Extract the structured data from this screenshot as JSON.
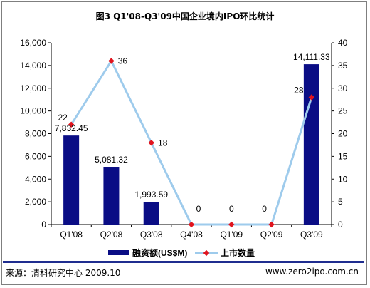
{
  "chart_data": {
    "type": "bar",
    "title": "图3  Q1'08-Q3'09中国企业境内IPO环比统计",
    "categories": [
      "Q1'08",
      "Q2'08",
      "Q3'08",
      "Q4'08",
      "Q1'09",
      "Q2'09",
      "Q3'09"
    ],
    "series": [
      {
        "name": "融资额(US$M)",
        "type": "bar",
        "axis": "left",
        "color": "#0a0d85",
        "values": [
          7832.45,
          5081.32,
          1993.59,
          0,
          0,
          0,
          14111.33
        ],
        "labels": [
          "7,832.45",
          "5,081.32",
          "1,993.59",
          "",
          "",
          "",
          "14,111.33"
        ]
      },
      {
        "name": "上市数量",
        "type": "line",
        "axis": "right",
        "color": "#9ecbec",
        "marker_color": "#e0141e",
        "values": [
          22,
          36,
          18,
          0,
          0,
          0,
          28
        ],
        "labels": [
          "22",
          "36",
          "18",
          "0",
          "0",
          "0",
          "28"
        ]
      }
    ],
    "y_left": {
      "range": [
        0,
        16000
      ],
      "ticks": [
        0,
        2000,
        4000,
        6000,
        8000,
        10000,
        12000,
        14000,
        16000
      ],
      "tick_labels": [
        "0",
        "2,000",
        "4,000",
        "6,000",
        "8,000",
        "10,000",
        "12,000",
        "14,000",
        "16,000"
      ]
    },
    "y_right": {
      "range": [
        0,
        40
      ],
      "ticks": [
        0,
        5,
        10,
        15,
        20,
        25,
        30,
        35,
        40
      ],
      "tick_labels": [
        "0",
        "5",
        "10",
        "15",
        "20",
        "25",
        "30",
        "35",
        "40"
      ]
    },
    "grid": false,
    "legend_position": "bottom"
  },
  "footer": {
    "source": "来源：清科研究中心 2009.10",
    "website": "www.zero2ipo.com.cn"
  }
}
